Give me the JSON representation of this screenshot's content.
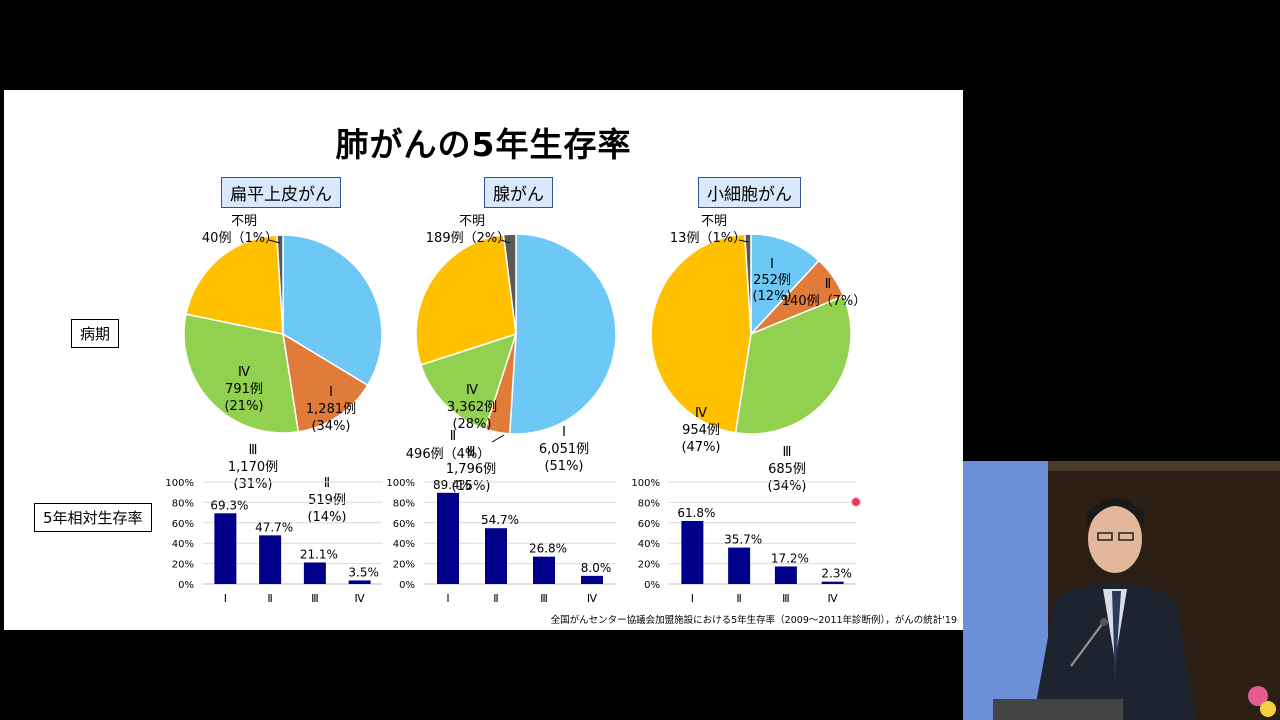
{
  "title": "肺がんの5年生存率",
  "row_labels": {
    "stage": "病期",
    "survival": "5年相対生存率"
  },
  "footnote": "全国がんセンター協議会加盟施設における5年生存率（2009～2011年診断例），がんの統計'19",
  "colors": {
    "I": "#6ec8f5",
    "II": "#e07b39",
    "III": "#92d050",
    "IV": "#ffc000",
    "unknown": "#595959",
    "bar": "#00008b"
  },
  "chart_data": [
    {
      "type": "pie",
      "title": "扁平上皮がん",
      "slices": [
        {
          "name": "Ⅰ",
          "count": "1,281例",
          "pct": "(34%)",
          "value": 34
        },
        {
          "name": "Ⅱ",
          "count": "519例",
          "pct": "(14%)",
          "value": 14
        },
        {
          "name": "Ⅲ",
          "count": "1,170例",
          "pct": "(31%)",
          "value": 31
        },
        {
          "name": "Ⅳ",
          "count": "791例",
          "pct": "(21%)",
          "value": 21
        },
        {
          "name": "不明",
          "count": "40例",
          "pct": "（1%）",
          "value": 1
        }
      ]
    },
    {
      "type": "pie",
      "title": "腺がん",
      "slices": [
        {
          "name": "Ⅰ",
          "count": "6,051例",
          "pct": "(51%)",
          "value": 51
        },
        {
          "name": "Ⅱ",
          "count": "496例",
          "pct": "（4%）",
          "value": 4
        },
        {
          "name": "Ⅲ",
          "count": "1,796例",
          "pct": "(15%)",
          "value": 15
        },
        {
          "name": "Ⅳ",
          "count": "3,362例",
          "pct": "(28%)",
          "value": 28
        },
        {
          "name": "不明",
          "count": "189例",
          "pct": "（2%）",
          "value": 2
        }
      ]
    },
    {
      "type": "pie",
      "title": "小細胞がん",
      "slices": [
        {
          "name": "Ⅰ",
          "count": "252例",
          "pct": "(12%)",
          "value": 12
        },
        {
          "name": "Ⅱ",
          "count": "140例",
          "pct": "（7%）",
          "value": 7
        },
        {
          "name": "Ⅲ",
          "count": "685例",
          "pct": "(34%)",
          "value": 34
        },
        {
          "name": "Ⅳ",
          "count": "954例",
          "pct": "(47%)",
          "value": 47
        },
        {
          "name": "不明",
          "count": "13例",
          "pct": "（1%）",
          "value": 1
        }
      ]
    },
    {
      "type": "bar",
      "categories": [
        "Ⅰ",
        "Ⅱ",
        "Ⅲ",
        "Ⅳ"
      ],
      "values": [
        69.3,
        47.7,
        21.1,
        3.5
      ],
      "labels": [
        "69.3%",
        "47.7%",
        "21.1%",
        "3.5%"
      ],
      "ylim": [
        0,
        100
      ],
      "yticks": [
        "0%",
        "20%",
        "40%",
        "60%",
        "80%",
        "100%"
      ]
    },
    {
      "type": "bar",
      "categories": [
        "Ⅰ",
        "Ⅱ",
        "Ⅲ",
        "Ⅳ"
      ],
      "values": [
        89.4,
        54.7,
        26.8,
        8.0
      ],
      "labels": [
        "89.4%",
        "54.7%",
        "26.8%",
        "8.0%"
      ],
      "ylim": [
        0,
        100
      ],
      "yticks": [
        "0%",
        "20%",
        "40%",
        "60%",
        "80%",
        "100%"
      ]
    },
    {
      "type": "bar",
      "categories": [
        "Ⅰ",
        "Ⅱ",
        "Ⅲ",
        "Ⅳ"
      ],
      "values": [
        61.8,
        35.7,
        17.2,
        2.3
      ],
      "labels": [
        "61.8%",
        "35.7%",
        "17.2%",
        "2.3%"
      ],
      "ylim": [
        0,
        100
      ],
      "yticks": [
        "0%",
        "20%",
        "40%",
        "60%",
        "80%",
        "100%"
      ]
    }
  ]
}
